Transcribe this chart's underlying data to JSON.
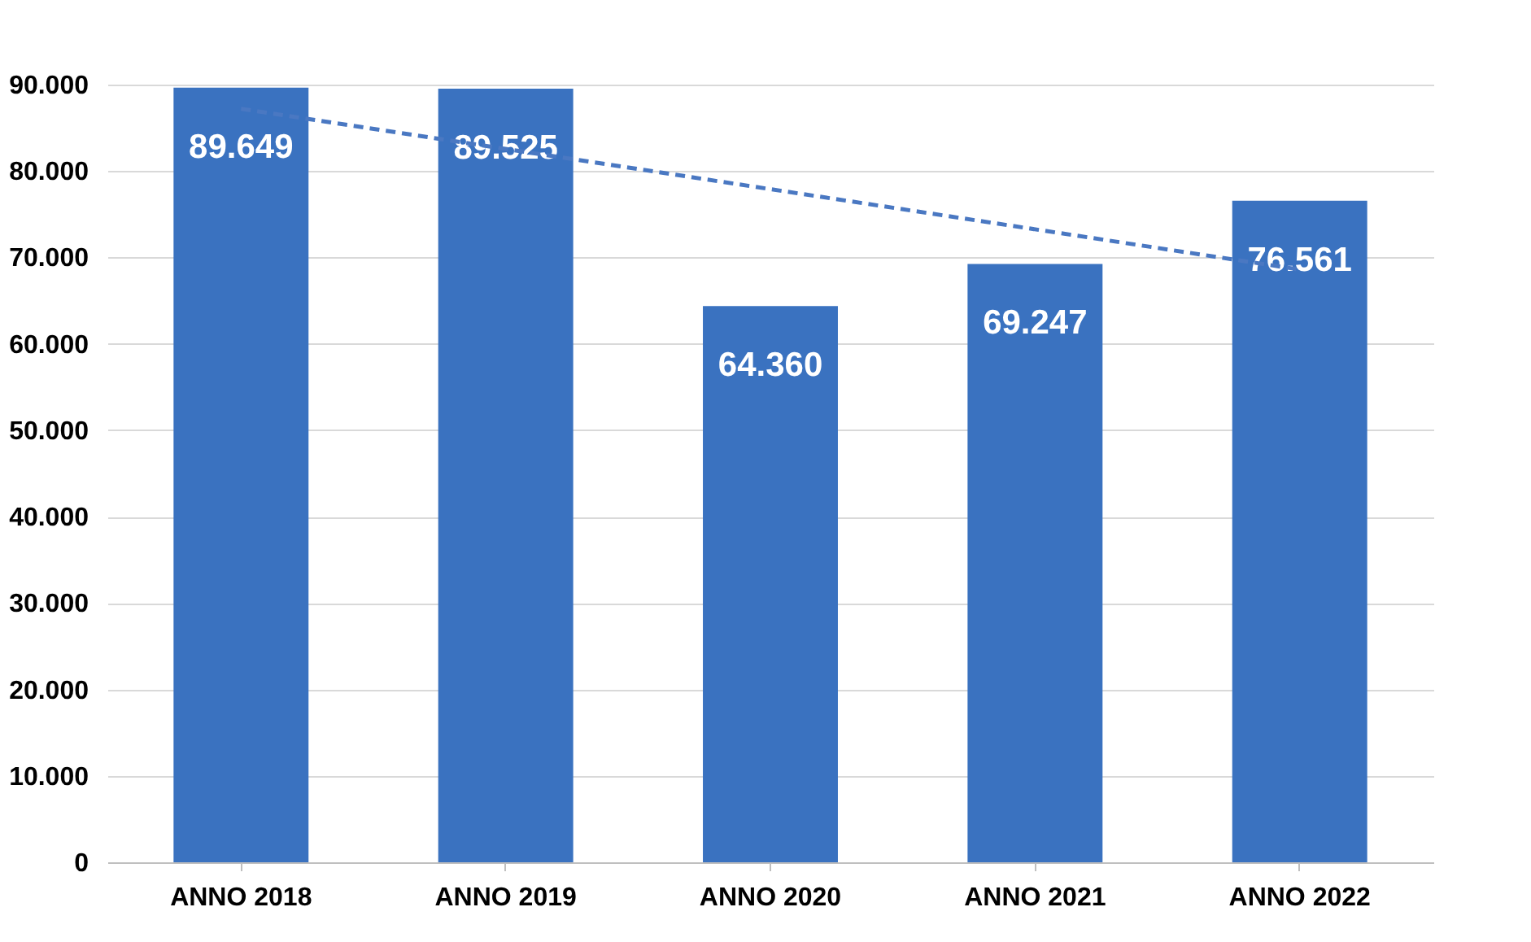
{
  "chart_data": {
    "type": "bar",
    "categories": [
      "ANNO 2018",
      "ANNO 2019",
      "ANNO 2020",
      "ANNO 2021",
      "ANNO 2022"
    ],
    "series": [
      {
        "type": "bar",
        "color": "#3a72c0",
        "values": [
          89649,
          89525,
          64360,
          69247,
          76561
        ],
        "value_labels": [
          "89.649",
          "89.525",
          "64.360",
          "69.247",
          "76.561"
        ]
      },
      {
        "type": "line",
        "color": "#4a78c2",
        "line_style": "dashed",
        "x": [
          "ANNO 2018",
          "ANNO 2022"
        ],
        "values": [
          87200,
          68600
        ]
      }
    ],
    "ylim": [
      0,
      90000
    ],
    "yticks": [
      {
        "value": 0,
        "label": "0"
      },
      {
        "value": 10000,
        "label": "10.000"
      },
      {
        "value": 20000,
        "label": "20.000"
      },
      {
        "value": 30000,
        "label": "30.000"
      },
      {
        "value": 40000,
        "label": "40.000"
      },
      {
        "value": 50000,
        "label": "50.000"
      },
      {
        "value": 60000,
        "label": "60.000"
      },
      {
        "value": 70000,
        "label": "70.000"
      },
      {
        "value": 80000,
        "label": "80.000"
      },
      {
        "value": 90000,
        "label": "90.000"
      }
    ],
    "grid": "y"
  }
}
